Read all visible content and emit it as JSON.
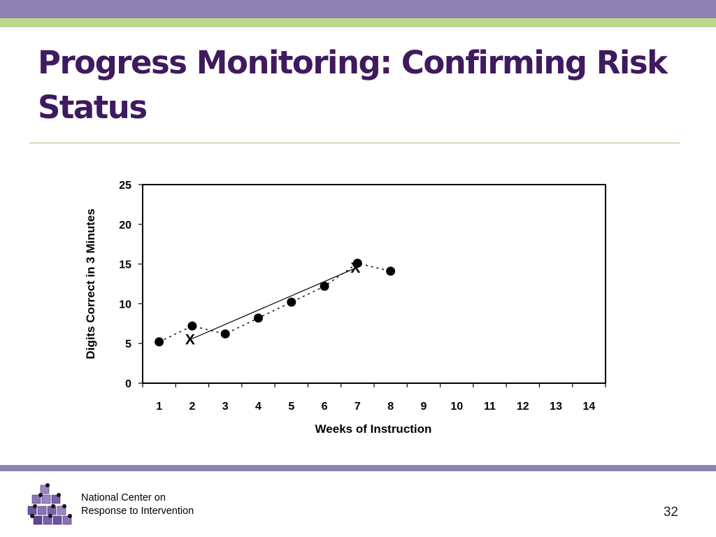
{
  "slide": {
    "title": "Progress Monitoring: Confirming Risk Status",
    "page_number": "32",
    "org_line1": "National Center on",
    "org_line2": "Response to Intervention"
  },
  "colors": {
    "band_purple": "#8e82b2",
    "band_green": "#bcd88f",
    "title": "#3f1a5e"
  },
  "chart_data": {
    "type": "line",
    "title": "",
    "xlabel": "Weeks of Instruction",
    "ylabel": "Digits Correct in 3 Minutes",
    "xlim": [
      0.5,
      14.5
    ],
    "ylim": [
      0,
      25
    ],
    "categories": [
      "1",
      "2",
      "3",
      "4",
      "5",
      "6",
      "7",
      "8",
      "9",
      "10",
      "11",
      "12",
      "13",
      "14"
    ],
    "yticks": [
      "0",
      "5",
      "10",
      "15",
      "20",
      "25"
    ],
    "grid": false,
    "legend": "none",
    "series": [
      {
        "x": [
          1,
          2,
          3,
          4,
          5,
          6,
          7,
          8
        ],
        "values": [
          5.2,
          7.2,
          6.2,
          8.2,
          10.2,
          12.2,
          15.1,
          14.1
        ],
        "style": "dotted line with filled circle markers"
      }
    ],
    "trend_line": {
      "x": [
        2,
        7
      ],
      "values": [
        5.6,
        14.6
      ]
    },
    "x_markers": [
      {
        "x": 2,
        "value": 5.6,
        "label": "X"
      },
      {
        "x": 7,
        "value": 14.6,
        "label": "X"
      }
    ]
  }
}
